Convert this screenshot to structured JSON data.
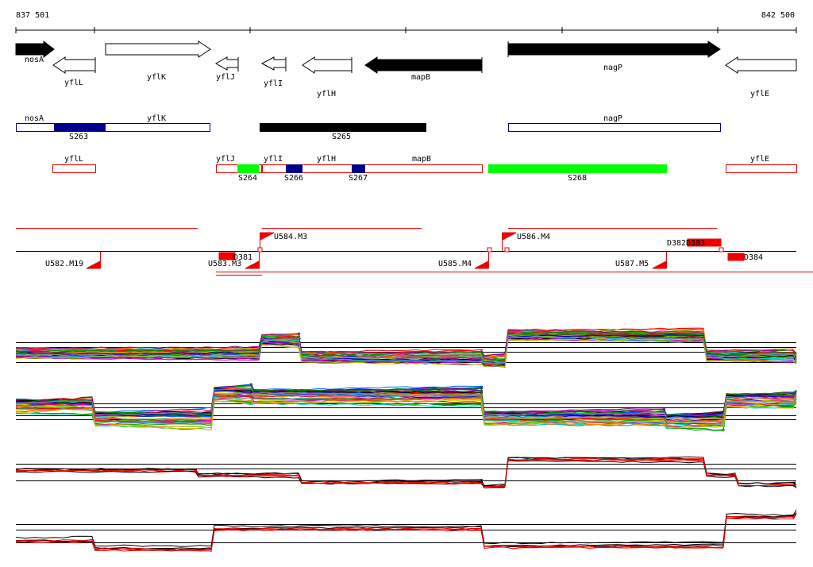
{
  "ruler": {
    "start": "837 501",
    "end": "842 500"
  },
  "genes": [
    "nosA",
    "yflL",
    "yflK",
    "yflJ",
    "yflI",
    "yflH",
    "mapB",
    "nagP",
    "yflE"
  ],
  "operons": [
    "nosA",
    "yflK",
    "S263",
    "S265",
    "nagP"
  ],
  "transcripts": [
    "yflL",
    "yflJ",
    "S264",
    "yflI",
    "yflH",
    "mapB",
    "S266",
    "S267",
    "S268",
    "yflE"
  ],
  "regulation": [
    "U584.M3",
    "U586.M4",
    "D382",
    "D383",
    "U582.M19",
    "U583.M3",
    "D381",
    "U585.M4",
    "U587.M5",
    "D384"
  ]
}
